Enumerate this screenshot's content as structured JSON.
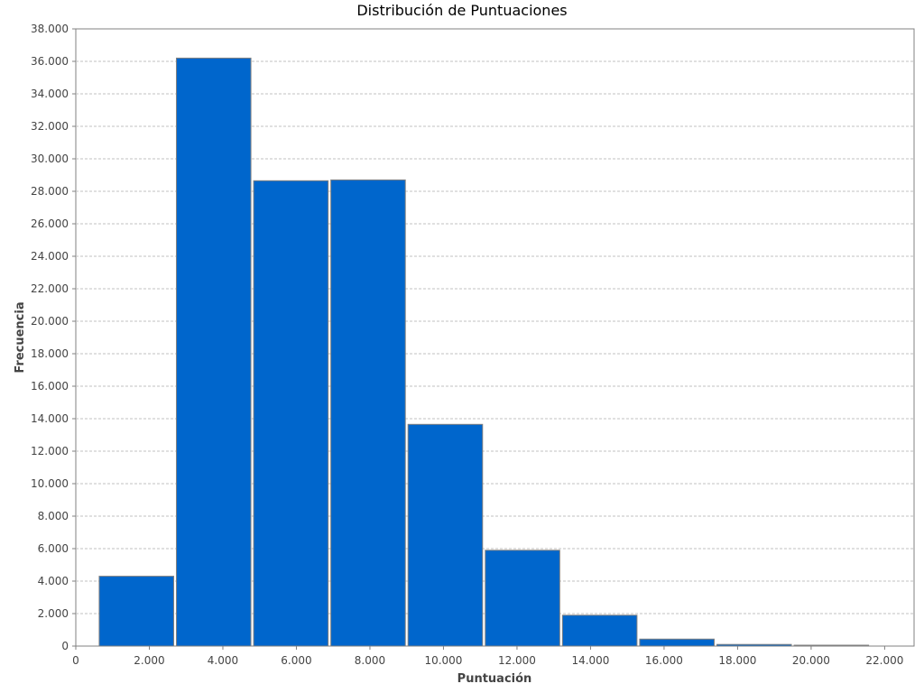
{
  "chart_data": {
    "type": "bar",
    "title": "Distribución de Puntuaciones",
    "xlabel": "Puntuación",
    "ylabel": "Frecuencia",
    "xlim": [
      0,
      22800
    ],
    "ylim": [
      0,
      38000
    ],
    "grid": true,
    "x_ticks": [
      {
        "value": 0,
        "label": "0"
      },
      {
        "value": 2000,
        "label": "2.000"
      },
      {
        "value": 4000,
        "label": "4.000"
      },
      {
        "value": 6000,
        "label": "6.000"
      },
      {
        "value": 8000,
        "label": "8.000"
      },
      {
        "value": 10000,
        "label": "10.000"
      },
      {
        "value": 12000,
        "label": "12.000"
      },
      {
        "value": 14000,
        "label": "14.000"
      },
      {
        "value": 16000,
        "label": "16.000"
      },
      {
        "value": 18000,
        "label": "18.000"
      },
      {
        "value": 20000,
        "label": "20.000"
      },
      {
        "value": 22000,
        "label": "22.000"
      }
    ],
    "y_ticks": [
      {
        "value": 0,
        "label": "0"
      },
      {
        "value": 2000,
        "label": "2.000"
      },
      {
        "value": 4000,
        "label": "4.000"
      },
      {
        "value": 6000,
        "label": "6.000"
      },
      {
        "value": 8000,
        "label": "8.000"
      },
      {
        "value": 10000,
        "label": "10.000"
      },
      {
        "value": 12000,
        "label": "12.000"
      },
      {
        "value": 14000,
        "label": "14.000"
      },
      {
        "value": 16000,
        "label": "16.000"
      },
      {
        "value": 18000,
        "label": "18.000"
      },
      {
        "value": 20000,
        "label": "20.000"
      },
      {
        "value": 22000,
        "label": "22.000"
      },
      {
        "value": 24000,
        "label": "24.000"
      },
      {
        "value": 26000,
        "label": "26.000"
      },
      {
        "value": 28000,
        "label": "28.000"
      },
      {
        "value": 30000,
        "label": "30.000"
      },
      {
        "value": 32000,
        "label": "32.000"
      },
      {
        "value": 34000,
        "label": "34.000"
      },
      {
        "value": 36000,
        "label": "36.000"
      },
      {
        "value": 38000,
        "label": "38.000"
      }
    ],
    "bins": [
      {
        "start": 600,
        "end": 2700,
        "value": 4300
      },
      {
        "start": 2700,
        "end": 4800,
        "value": 36200
      },
      {
        "start": 4800,
        "end": 6900,
        "value": 28650
      },
      {
        "start": 6900,
        "end": 9000,
        "value": 28700
      },
      {
        "start": 9000,
        "end": 11100,
        "value": 13650
      },
      {
        "start": 11100,
        "end": 13200,
        "value": 5900
      },
      {
        "start": 13200,
        "end": 15300,
        "value": 1900
      },
      {
        "start": 15300,
        "end": 17400,
        "value": 430
      },
      {
        "start": 17400,
        "end": 19500,
        "value": 100
      },
      {
        "start": 19500,
        "end": 21600,
        "value": 20
      }
    ],
    "colors": {
      "bar": "#0066cc",
      "bar_stroke": "#808080",
      "grid": "#c0c0c0"
    }
  }
}
